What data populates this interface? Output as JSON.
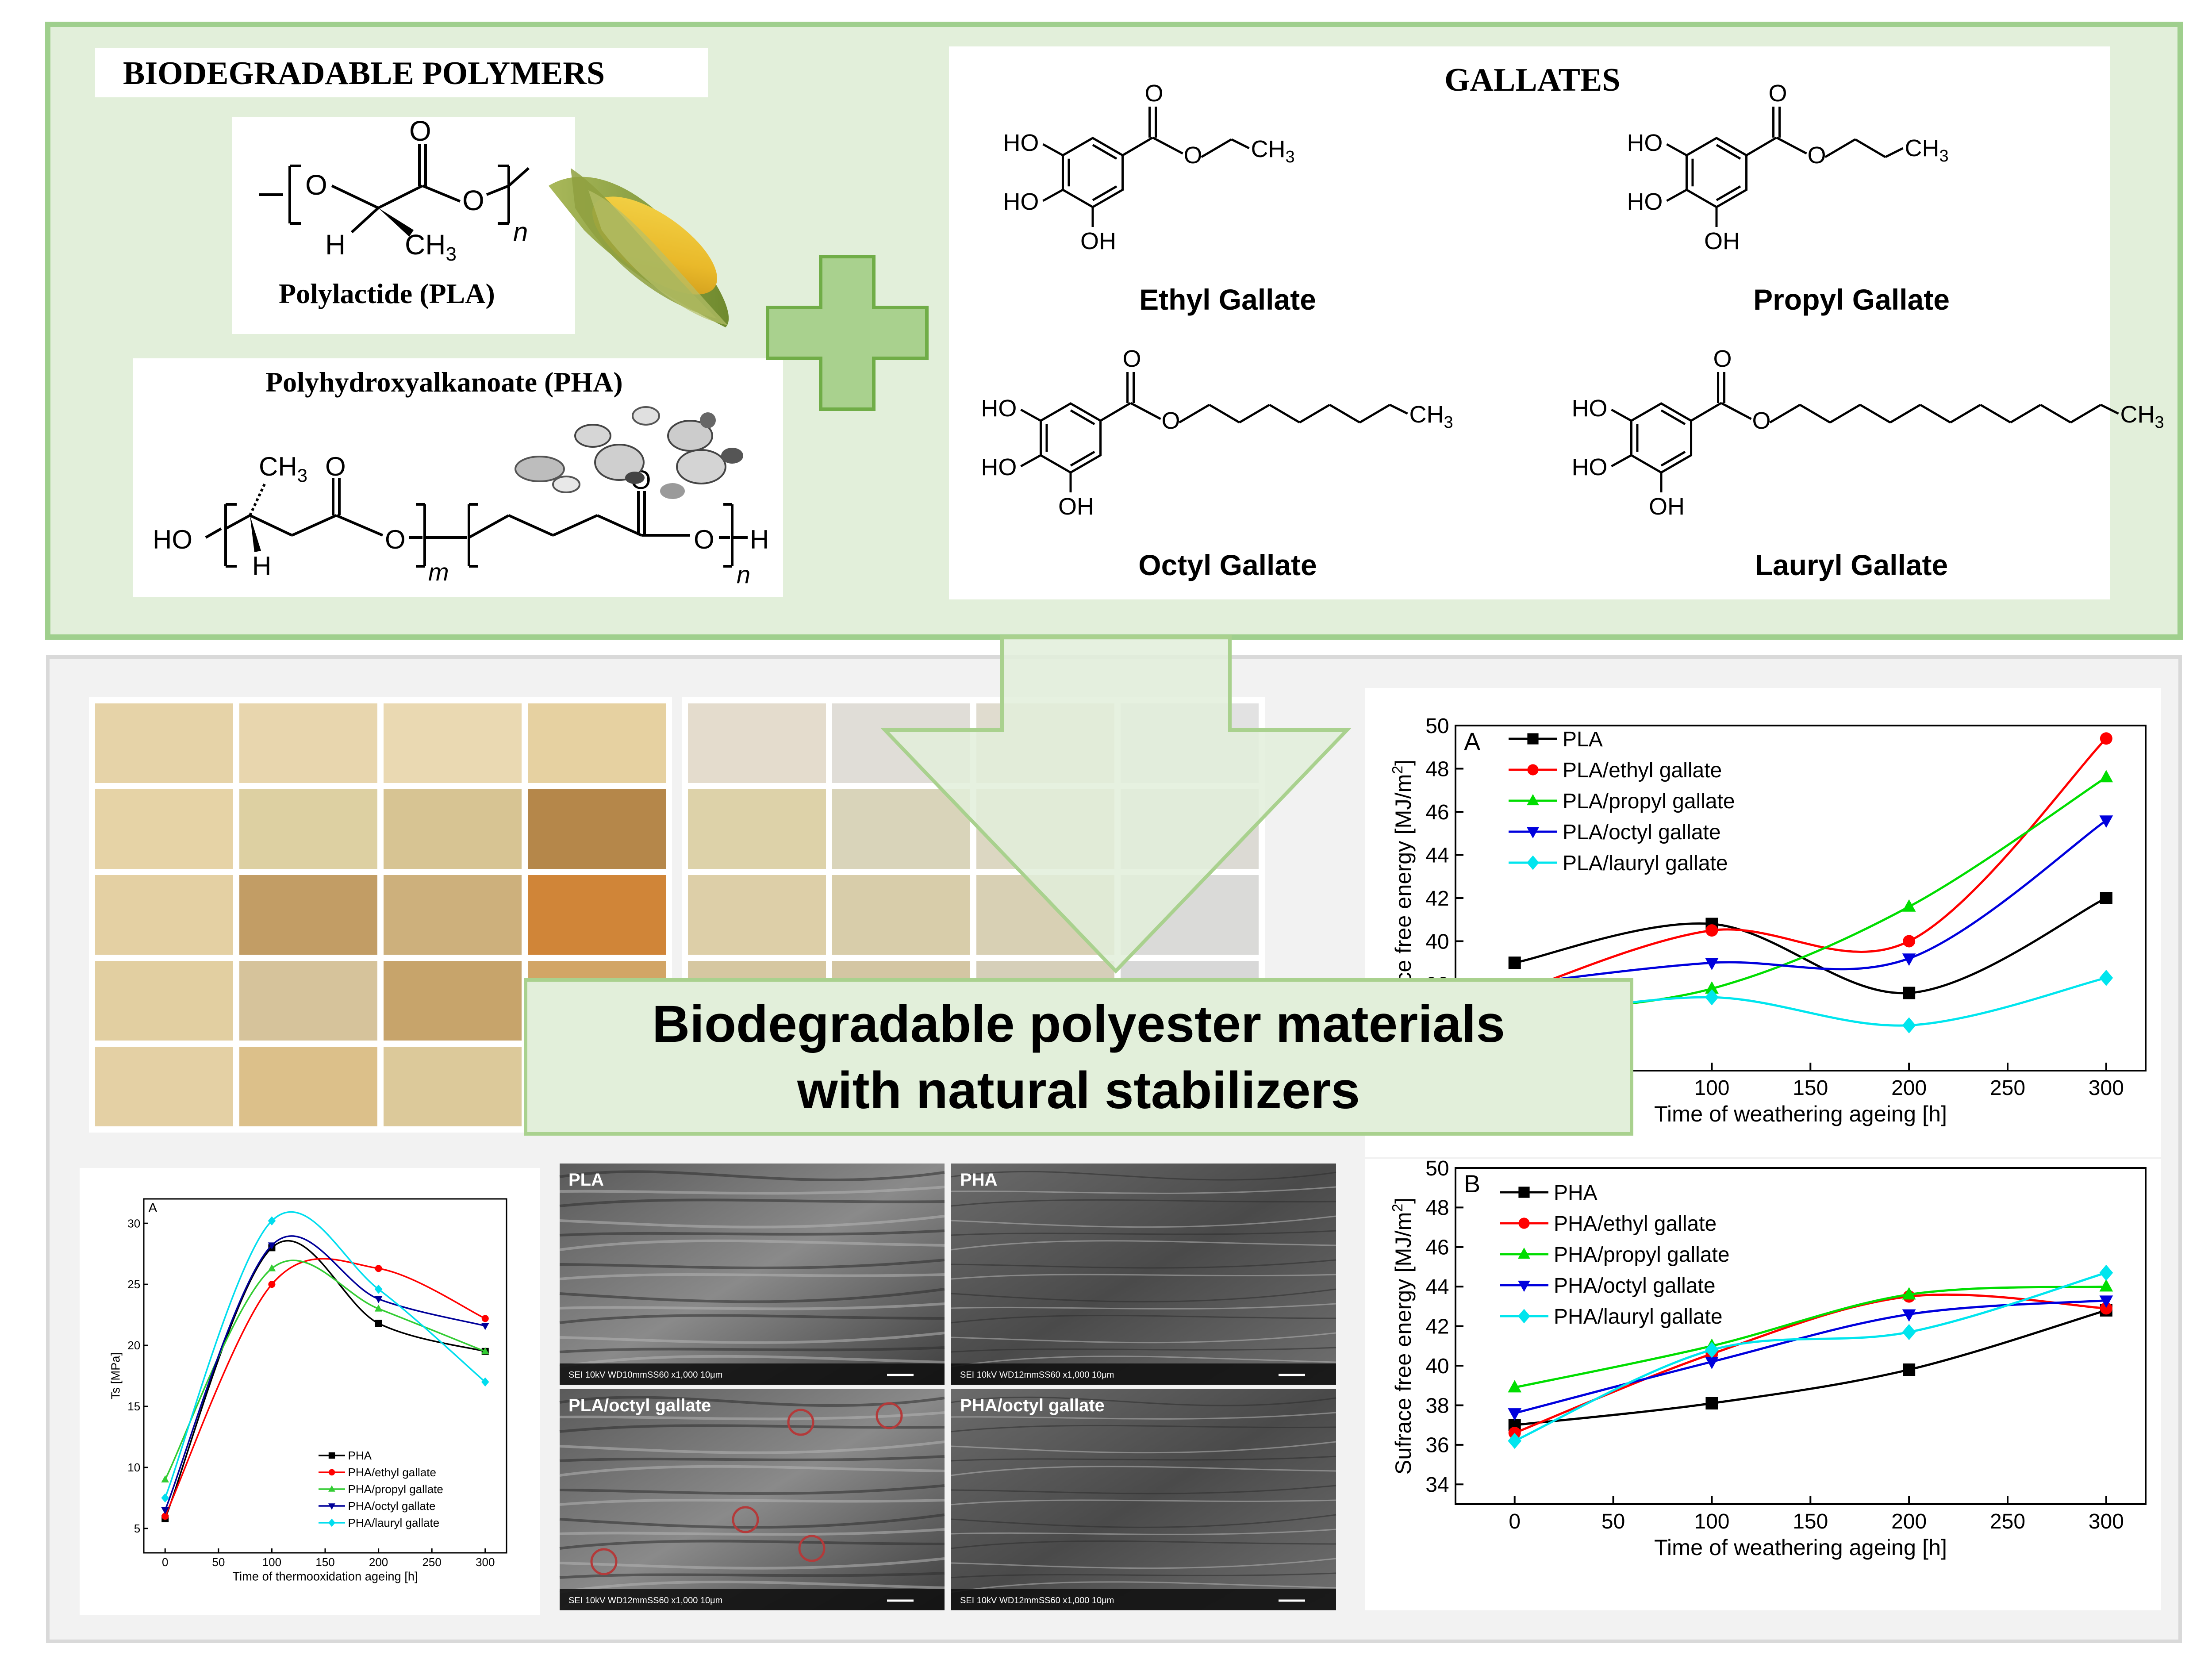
{
  "top_panel": {
    "polymers_title": "BIODEGRADABLE POLYMERS",
    "pla": {
      "caption": "Polylactide (PLA)",
      "atoms": {
        "o1": "O",
        "o2": "O",
        "o3": "O",
        "h": "H",
        "ch3": "CH",
        "ch3_sub": "3",
        "n": "n"
      }
    },
    "pha": {
      "caption": "Polyhydroxyalkanoate (PHA)",
      "atoms": {
        "ho": "HO",
        "ch3": "CH",
        "ch3_sub": "3",
        "h": "H",
        "o1": "O",
        "o2": "O",
        "o3": "O",
        "o4": "O",
        "h_end": "H",
        "m": "m",
        "n": "n"
      }
    },
    "gallates_title": "GALLATES",
    "gallates": [
      {
        "name": "Ethyl Gallate",
        "ho1": "HO",
        "ho2": "HO",
        "oh": "OH",
        "carbonyl_o": "O",
        "ester_o": "O",
        "tail": "CH",
        "tail_sub": "3"
      },
      {
        "name": "Propyl Gallate",
        "ho1": "HO",
        "ho2": "HO",
        "oh": "OH",
        "carbonyl_o": "O",
        "ester_o": "O",
        "tail": "CH",
        "tail_sub": "3"
      },
      {
        "name": "Octyl Gallate",
        "ho1": "HO",
        "ho2": "HO",
        "oh": "OH",
        "carbonyl_o": "O",
        "ester_o": "O",
        "tail": "CH",
        "tail_sub": "3"
      },
      {
        "name": "Lauryl Gallate",
        "ho1": "HO",
        "ho2": "HO",
        "oh": "OH",
        "carbonyl_o": "O",
        "ester_o": "O",
        "tail": "CH",
        "tail_sub": "3"
      }
    ]
  },
  "center_banner": {
    "line1": "Biodegradable polyester materials",
    "line2": "with natural stabilizers"
  },
  "swatches": {
    "left_grid_colors": [
      [
        "#e6d3a8",
        "#e8d6ae",
        "#ead9b2",
        "#e6d1a1"
      ],
      [
        "#e6d3a6",
        "#ddd0a2",
        "#d7c493",
        "#b5874a"
      ],
      [
        "#e4d0a3",
        "#c29d65",
        "#cdb07c",
        "#d08538"
      ],
      [
        "#e2cfa1",
        "#d6c39b",
        "#c7a46b",
        "#d2a566"
      ],
      [
        "#e4d0a4",
        "#dcc08a",
        "#dcc99a",
        "#d6b57c"
      ]
    ],
    "right_grid_colors": [
      [
        "#e4dccd",
        "#e0ddd7",
        "#e0dccf",
        "#e2e2e2"
      ],
      [
        "#ddd2a9",
        "#d9d4ba",
        "#dcd7c2",
        "#dcdad4"
      ],
      [
        "#ddcfa8",
        "#d8cdaa",
        "#d8d0b4",
        "#dadad8"
      ],
      [
        "#d6c7a1",
        "#d4c6a3",
        "#d6cfb9",
        "#d8d8d8"
      ],
      [
        "#d4c49c",
        "#d4c7a5",
        "#d6cfbd",
        "#dadada"
      ]
    ]
  },
  "sem": [
    {
      "label": "PLA",
      "footer": "SEI  10kV  WD10mmSS60      x1,000   10μm"
    },
    {
      "label": "PHA",
      "footer": "SEI  10kV  WD12mmSS60      x1,000   10μm"
    },
    {
      "label": "PLA/octyl gallate",
      "footer": "SEI  10kV  WD12mmSS60      x1,000   10μm"
    },
    {
      "label": "PHA/octyl gallate",
      "footer": "SEI  10kV  WD12mmSS60      x1,000   10μm"
    }
  ],
  "chart_data": [
    {
      "type": "line",
      "panel_letter": "A",
      "xlabel": "Time of weathering ageing [h]",
      "ylabel": "Sufrace free energy [MJ/m",
      "ylabel_sup": "2",
      "ylabel_end": "]",
      "x": [
        0,
        100,
        200,
        300
      ],
      "xticks": [
        100,
        150,
        200,
        250,
        300
      ],
      "yticks": [
        38,
        40,
        42,
        44,
        46,
        48,
        50
      ],
      "xlim": [
        -30,
        320
      ],
      "ylim": [
        34,
        50
      ],
      "legend_position": "top-left",
      "series": [
        {
          "name": "PLA",
          "color": "#000000",
          "marker": "square",
          "values": [
            39.0,
            40.8,
            37.6,
            42.0
          ]
        },
        {
          "name": "PLA/ethyl gallate",
          "color": "#ff0000",
          "marker": "circle",
          "values": [
            37.6,
            40.5,
            40.0,
            49.4
          ]
        },
        {
          "name": "PLA/propyl gallate",
          "color": "#00dd00",
          "marker": "triangle-up",
          "values": [
            36.6,
            37.8,
            41.6,
            47.6
          ]
        },
        {
          "name": "PLA/octyl gallate",
          "color": "#0000dd",
          "marker": "triangle-down",
          "values": [
            38.0,
            39.0,
            39.2,
            45.6
          ]
        },
        {
          "name": "PLA/lauryl gallate",
          "color": "#00e5ee",
          "marker": "diamond",
          "values": [
            36.4,
            37.4,
            36.1,
            38.3
          ]
        }
      ]
    },
    {
      "type": "line",
      "panel_letter": "B",
      "xlabel": "Time of weathering ageing [h]",
      "ylabel": "Sufrace free energy [MJ/m",
      "ylabel_sup": "2",
      "ylabel_end": "]",
      "x": [
        0,
        100,
        200,
        300
      ],
      "xticks": [
        0,
        50,
        100,
        150,
        200,
        250,
        300
      ],
      "yticks": [
        34,
        36,
        38,
        40,
        42,
        44,
        46,
        48,
        50
      ],
      "xlim": [
        -30,
        320
      ],
      "ylim": [
        33,
        50
      ],
      "legend_position": "top-left",
      "series": [
        {
          "name": "PHA",
          "color": "#000000",
          "marker": "square",
          "values": [
            37.0,
            38.1,
            39.8,
            42.8
          ]
        },
        {
          "name": "PHA/ethyl gallate",
          "color": "#ff0000",
          "marker": "circle",
          "values": [
            36.6,
            40.6,
            43.5,
            42.9
          ]
        },
        {
          "name": "PHA/propyl gallate",
          "color": "#00dd00",
          "marker": "triangle-up",
          "values": [
            38.9,
            41.0,
            43.6,
            44.0
          ]
        },
        {
          "name": "PHA/octyl gallate",
          "color": "#0000dd",
          "marker": "triangle-down",
          "values": [
            37.6,
            40.2,
            42.6,
            43.3
          ]
        },
        {
          "name": "PHA/lauryl gallate",
          "color": "#00e5ee",
          "marker": "diamond",
          "values": [
            36.2,
            40.8,
            41.7,
            44.7
          ]
        }
      ]
    },
    {
      "type": "line",
      "panel_letter": "A",
      "xlabel": "Time of thermooxidation ageing [h]",
      "ylabel": "Ts [MPa]",
      "x": [
        0,
        100,
        200,
        300
      ],
      "xticks": [
        0,
        50,
        100,
        150,
        200,
        250,
        300
      ],
      "yticks": [
        5,
        10,
        15,
        20,
        25,
        30
      ],
      "xlim": [
        -20,
        320
      ],
      "ylim": [
        3,
        32
      ],
      "legend_position": "bottom-right",
      "series": [
        {
          "name": "PHA",
          "color": "#000000",
          "marker": "square",
          "values": [
            5.8,
            28.0,
            21.8,
            19.5
          ]
        },
        {
          "name": "PHA/ethyl gallate",
          "color": "#ff0000",
          "marker": "circle",
          "values": [
            6.0,
            25.0,
            26.3,
            22.2
          ]
        },
        {
          "name": "PHA/propyl gallate",
          "color": "#33cc33",
          "marker": "triangle-up",
          "values": [
            9.0,
            26.3,
            23.0,
            19.5
          ]
        },
        {
          "name": "PHA/octyl gallate",
          "color": "#000099",
          "marker": "triangle-down",
          "values": [
            6.5,
            28.2,
            23.8,
            21.6
          ]
        },
        {
          "name": "PHA/lauryl gallate",
          "color": "#00ddee",
          "marker": "diamond",
          "values": [
            7.5,
            30.2,
            24.6,
            17.0
          ]
        }
      ]
    }
  ]
}
